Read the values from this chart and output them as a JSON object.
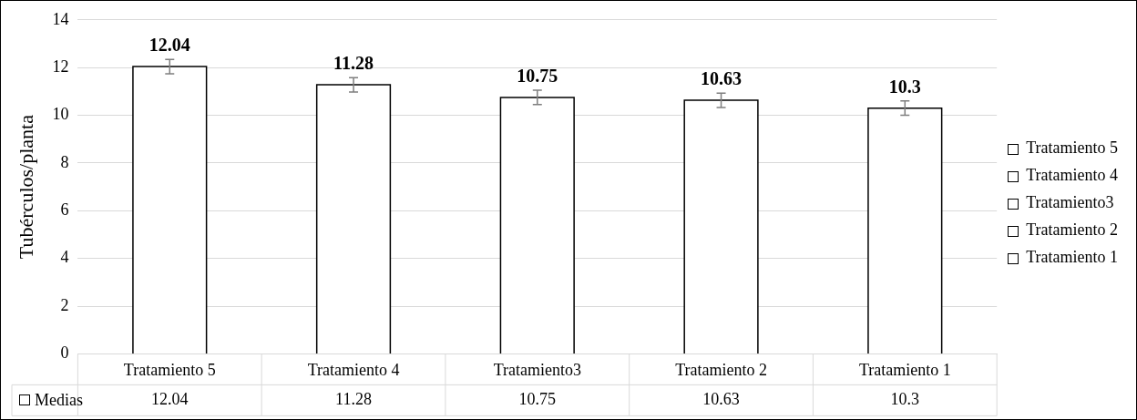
{
  "chart_data": {
    "type": "bar",
    "ylabel": "Tubérculos/planta",
    "stacked": true,
    "categories": [
      "Tratamiento 5",
      "Tratamiento 4",
      "Tratamiento3",
      "Tratamiento 2",
      "Tratamiento 1"
    ],
    "series": [
      {
        "name": "Tratamiento 5",
        "color": "#ffffff",
        "values": [
          12.04,
          null,
          null,
          null,
          null
        ],
        "errors": [
          0.3,
          null,
          null,
          null,
          null
        ]
      },
      {
        "name": "Tratamiento 4",
        "color": "#ffffff",
        "values": [
          null,
          11.28,
          null,
          null,
          null
        ],
        "errors": [
          null,
          0.3,
          null,
          null,
          null
        ]
      },
      {
        "name": "Tratamiento3",
        "color": "#ffffff",
        "values": [
          null,
          null,
          10.75,
          null,
          null
        ],
        "errors": [
          null,
          null,
          0.3,
          null,
          null
        ]
      },
      {
        "name": "Tratamiento 2",
        "color": "#ffffff",
        "values": [
          null,
          null,
          null,
          10.63,
          null
        ],
        "errors": [
          null,
          null,
          null,
          0.3,
          null
        ]
      },
      {
        "name": "Tratamiento 1",
        "color": "#ffffff",
        "values": [
          null,
          null,
          null,
          null,
          10.3
        ],
        "errors": [
          null,
          null,
          null,
          null,
          0.3
        ]
      }
    ],
    "annotations": [
      "Medias",
      "12.04",
      "11.28",
      "10.75",
      "10.63",
      "10.3"
    ],
    "ylim": [
      0,
      14
    ],
    "yticks": [
      0,
      2,
      4,
      6,
      8,
      10,
      12,
      14
    ],
    "grid": "y",
    "legend": "right",
    "data_labels": true
  }
}
